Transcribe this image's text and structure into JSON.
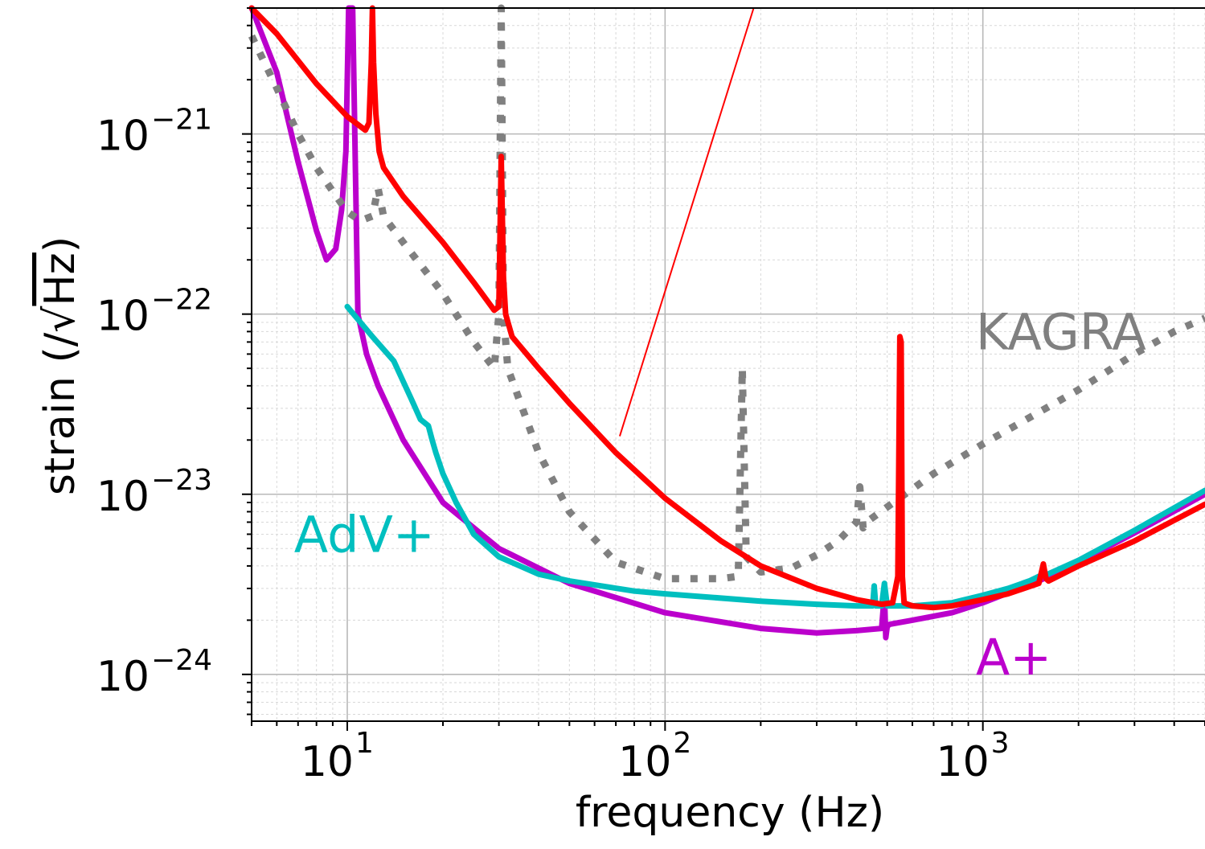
{
  "chart_data": {
    "type": "line",
    "xlabel": "frequency (Hz)",
    "ylabel_prefix": "strain (/",
    "ylabel_radical": "√",
    "ylabel_unit": "Hz",
    "ylabel_suffix": ")",
    "x_scale": "log",
    "y_scale": "log",
    "xlim": [
      5,
      5000
    ],
    "ylim": [
      5.5e-25,
      5e-21
    ],
    "grid": true,
    "x_ticks": [
      {
        "value": 10,
        "base": "10",
        "exp": "1"
      },
      {
        "value": 100,
        "base": "10",
        "exp": "2"
      },
      {
        "value": 1000,
        "base": "10",
        "exp": "3"
      }
    ],
    "y_ticks": [
      {
        "value": 1e-21,
        "base": "10",
        "exp": "−21"
      },
      {
        "value": 1e-22,
        "base": "10",
        "exp": "−22"
      },
      {
        "value": 1e-23,
        "base": "10",
        "exp": "−23"
      },
      {
        "value": 1e-24,
        "base": "10",
        "exp": "−24"
      }
    ],
    "series": [
      {
        "name": "A+",
        "color": "#bb00cc",
        "style": "solid",
        "x": [
          5,
          6,
          7,
          8,
          8.6,
          9.2,
          9.6,
          9.9,
          10.1,
          10.4,
          10.8,
          11.5,
          12.5,
          15,
          20,
          30,
          50,
          100,
          200,
          300,
          400,
          480,
          490,
          495,
          500,
          510,
          600,
          800,
          1000,
          1500,
          2000,
          3000,
          5000
        ],
        "y": [
          5e-21,
          2.2e-21,
          7e-22,
          2.9e-22,
          2e-22,
          2.3e-22,
          3.8e-22,
          8e-22,
          5e-21,
          5e-21,
          1e-22,
          6e-23,
          4e-23,
          2e-23,
          9e-24,
          5e-24,
          3.2e-24,
          2.2e-24,
          1.8e-24,
          1.7e-24,
          1.75e-24,
          1.8e-24,
          2.8e-24,
          1.6e-24,
          1.85e-24,
          1.9e-24,
          2e-24,
          2.2e-24,
          2.5e-24,
          3.3e-24,
          4.2e-24,
          6.1e-24,
          1e-23
        ]
      },
      {
        "name": "AdV+",
        "color": "#00bfbf",
        "style": "solid",
        "x": [
          10,
          12,
          14,
          16,
          17,
          18,
          18.5,
          19,
          20,
          22,
          25,
          30,
          40,
          50,
          80,
          100,
          200,
          300,
          400,
          450,
          455,
          460,
          480,
          490,
          500,
          510,
          600,
          800,
          1000,
          1200,
          1400,
          1500,
          1600,
          2000,
          3000,
          5000
        ],
        "y": [
          1.1e-22,
          7.5e-23,
          5.5e-23,
          3.3e-23,
          2.6e-23,
          2.4e-23,
          2e-23,
          1.7e-23,
          1.3e-23,
          9e-24,
          6e-24,
          4.5e-24,
          3.6e-24,
          3.3e-24,
          2.9e-24,
          2.8e-24,
          2.55e-24,
          2.45e-24,
          2.4e-24,
          2.4e-24,
          3.1e-24,
          2.4e-24,
          2.4e-24,
          3.2e-24,
          2.4e-24,
          2.4e-24,
          2.4e-24,
          2.5e-24,
          2.75e-24,
          3e-24,
          3.3e-24,
          3.5e-24,
          3.6e-24,
          4.3e-24,
          6.3e-24,
          1.05e-23
        ]
      },
      {
        "name": "KAGRA",
        "color": "#808080",
        "style": "dotted",
        "x": [
          5,
          6,
          7,
          8,
          9,
          10,
          11,
          12,
          12.5,
          13,
          15,
          20,
          25,
          29,
          30,
          30.5,
          31,
          32,
          40,
          50,
          70,
          100,
          150,
          170,
          175,
          178,
          180,
          200,
          250,
          300,
          350,
          400,
          410,
          420,
          430,
          500,
          700,
          1000,
          2000,
          3000,
          4000,
          5000
        ],
        "y": [
          3.5e-21,
          1.8e-21,
          1e-21,
          6.5e-22,
          4.8e-22,
          3.7e-22,
          3.3e-22,
          3.5e-22,
          5e-22,
          3.5e-22,
          2.5e-22,
          1.3e-22,
          7e-23,
          5e-23,
          1e-22,
          5e-21,
          1e-22,
          5e-23,
          1.7e-23,
          8e-24,
          4.2e-24,
          3.4e-24,
          3.4e-24,
          3.5e-24,
          5e-23,
          1.2e-23,
          4.5e-24,
          3.7e-24,
          3.9e-24,
          4.6e-24,
          5.5e-24,
          7e-24,
          1.1e-23,
          6.5e-24,
          7e-24,
          8.5e-24,
          1.3e-23,
          1.9e-23,
          3.8e-23,
          6e-23,
          8e-23,
          9.5e-23
        ]
      },
      {
        "name": "",
        "color": "#ff0000",
        "style": "solid",
        "x": [
          5,
          6,
          8,
          10,
          11.4,
          11.7,
          11.9,
          12.0,
          12.1,
          12.3,
          12.6,
          13,
          15,
          20,
          25,
          29,
          30,
          30.5,
          31,
          31.5,
          33,
          40,
          50,
          70,
          100,
          150,
          200,
          300,
          400,
          480,
          520,
          540,
          548,
          553,
          558,
          565,
          580,
          600,
          700,
          800,
          1000,
          1200,
          1500,
          1550,
          1580,
          1610,
          2000,
          3000,
          5000
        ],
        "y": [
          5e-21,
          3.6e-21,
          1.9e-21,
          1.25e-21,
          1.05e-21,
          1.15e-21,
          2.5e-21,
          5e-21,
          2.5e-21,
          1.3e-21,
          8e-22,
          6.5e-22,
          4.5e-22,
          2.5e-22,
          1.5e-22,
          1.05e-22,
          1.1e-22,
          7.5e-22,
          1.6e-22,
          1e-22,
          7.5e-23,
          5e-23,
          3.2e-23,
          1.7e-23,
          9.5e-24,
          5.5e-24,
          4e-24,
          3e-24,
          2.6e-24,
          2.45e-24,
          2.5e-24,
          3.5e-24,
          7.5e-23,
          7e-23,
          3.5e-24,
          2.5e-24,
          2.45e-24,
          2.4e-24,
          2.35e-24,
          2.4e-24,
          2.6e-24,
          2.8e-24,
          3.2e-24,
          4.1e-24,
          3.4e-24,
          3.3e-24,
          4e-24,
          5.5e-24,
          8.8e-24
        ]
      }
    ],
    "annotations": [
      {
        "text": "KAGRA",
        "color": "#808080",
        "x": 950,
        "y": 8e-23
      },
      {
        "text": "AdV+",
        "color": "#00bfbf",
        "x": 6.8,
        "y": 6e-24
      },
      {
        "text": "A+",
        "color": "#bb00cc",
        "x": 950,
        "y": 1.25e-24
      }
    ],
    "pointer_line": {
      "color": "#ff0000",
      "from": [
        72,
        2.1e-23
      ],
      "to": [
        190,
        5e-21
      ]
    }
  }
}
